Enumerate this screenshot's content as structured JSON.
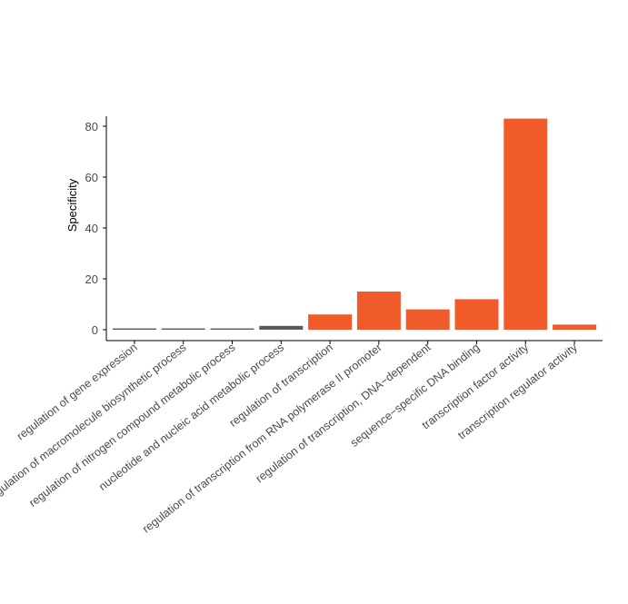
{
  "chart_data": {
    "type": "bar",
    "ylabel": "Specificity",
    "xlabel": "",
    "ylim": [
      0,
      83
    ],
    "yticks": [
      0,
      20,
      40,
      60,
      80
    ],
    "grid": false,
    "legend": "none",
    "categories": [
      "regulation of gene expression",
      "regulation of macromolecule biosynthetic process",
      "regulation of nitrogen compound metabolic process",
      "nucleotide and nucleic acid metabolic process",
      "regulation of transcription",
      "regulation of transcription from RNA polymerase II promoter",
      "regulation of transcription, DNA−dependent",
      "sequence−specific DNA binding",
      "transcription factor activity",
      "transcription regulator activity"
    ],
    "values": [
      0.5,
      0.5,
      0.5,
      1.5,
      6,
      15,
      8,
      12,
      83,
      2
    ],
    "bar_colors": [
      "#595959",
      "#595959",
      "#595959",
      "#595959",
      "#f15a29",
      "#f15a29",
      "#f15a29",
      "#f15a29",
      "#f15a29",
      "#f15a29"
    ]
  }
}
